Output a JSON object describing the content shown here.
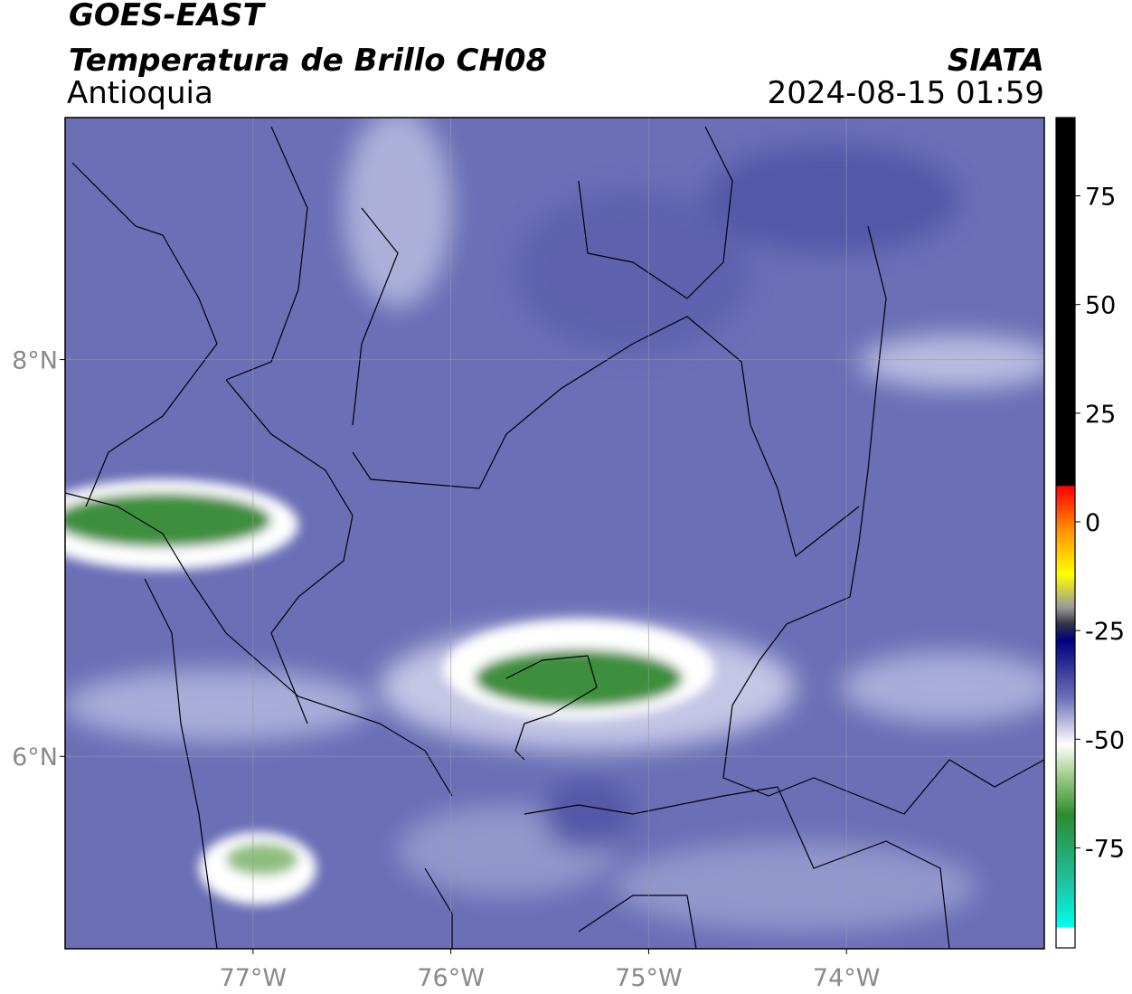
{
  "title": "GOES-EAST",
  "subtitle": "Temperatura de Brillo CH08",
  "region": "Antioquia",
  "source": "SIATA",
  "datetime": "2024-08-15 01:59",
  "map": {
    "xlim": [
      -77.95,
      -73.0
    ],
    "ylim": [
      5.03,
      9.22
    ],
    "xticks": [
      {
        "value": -77,
        "label": "77°W"
      },
      {
        "value": -76,
        "label": "76°W"
      },
      {
        "value": -75,
        "label": "75°W"
      },
      {
        "value": -74,
        "label": "74°W"
      }
    ],
    "yticks": [
      {
        "value": 8,
        "label": "8°N"
      },
      {
        "value": 6,
        "label": "6°N"
      }
    ],
    "grid": true
  },
  "colorbar": {
    "ylim": [
      -98,
      93
    ],
    "yticks": [
      75,
      50,
      25,
      0,
      -25,
      -50,
      -75
    ]
  }
}
